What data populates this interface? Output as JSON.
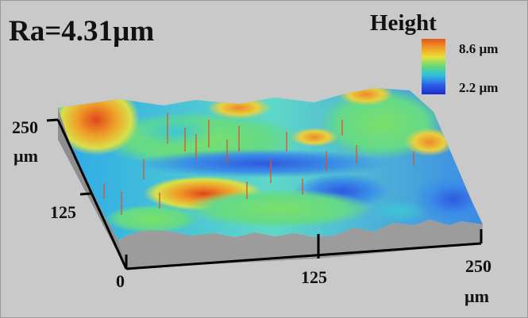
{
  "roughness_label": "Ra=4.31µm",
  "legend": {
    "title": "Height",
    "max_label": "8.6 µm",
    "min_label": "2.2 µm",
    "colors": [
      "#e2561c",
      "#f39a25",
      "#e5e23a",
      "#5fd97a",
      "#2fbfe0",
      "#2d5fe6",
      "#1b2fd0"
    ]
  },
  "axes": {
    "y_tick_250": "250",
    "y_unit": "µm",
    "y_tick_125": "125",
    "x_tick_0": "0",
    "x_tick_125": "125",
    "x_tick_250": "250",
    "x_unit": "µm"
  },
  "colors": {
    "background": "#c9c9c9",
    "base_wall": "#9a9a9a",
    "axis": "#000000"
  }
}
